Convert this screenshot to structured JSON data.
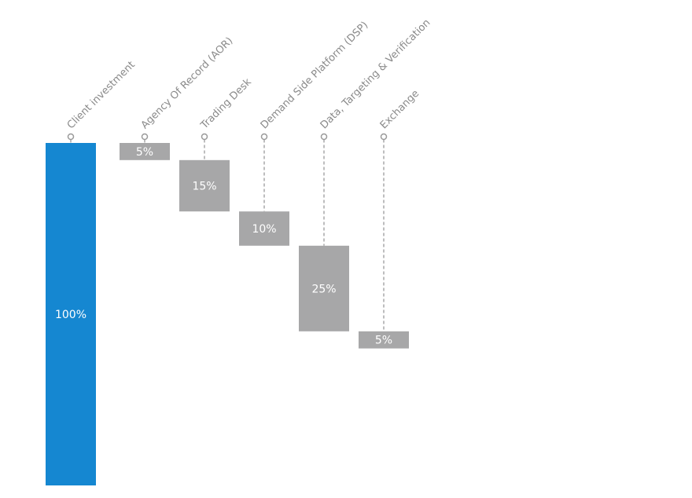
{
  "chart_data": {
    "type": "waterfall",
    "categories": [
      "Client investment",
      "Agency Of Record (AOR)",
      "Trading Desk",
      "Demand Side Platform (DSP)",
      "Data, Targeting & Verification",
      "Exchange"
    ],
    "values": [
      100,
      5,
      15,
      10,
      25,
      5
    ],
    "value_labels": [
      "100%",
      "5%",
      "15%",
      "10%",
      "25%",
      "5%"
    ],
    "total_color": "#1587d1",
    "color": "#a7a7a8"
  }
}
